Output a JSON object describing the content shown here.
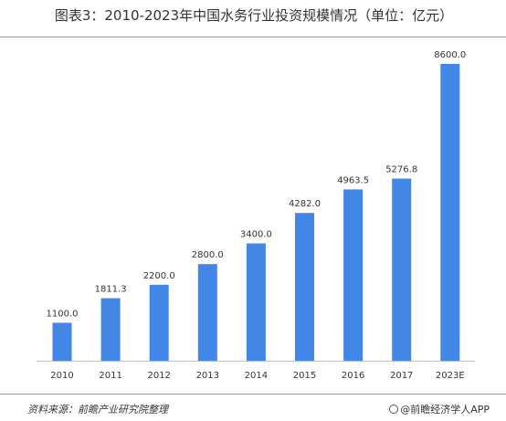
{
  "title": "图表3：2010-2023年中国水务行业投资规模情况（单位：亿元）",
  "source": "资料来源：前瞻产业研究院整理",
  "brand": "@前瞻经济学人APP",
  "colors": {
    "bar": "#4286e6",
    "axis": "#bfbfbf",
    "text": "#333333"
  },
  "chart_data": {
    "type": "bar",
    "title": "图表3：2010-2023年中国水务行业投资规模情况（单位：亿元）",
    "categories": [
      "2010",
      "2011",
      "2012",
      "2013",
      "2014",
      "2015",
      "2016",
      "2017",
      "2023E"
    ],
    "values": [
      1100.0,
      1811.3,
      2200.0,
      2800.0,
      3400.0,
      4282.0,
      4963.5,
      5276.8,
      8600.0
    ],
    "labels": [
      "1100.0",
      "1811.3",
      "2200.0",
      "2800.0",
      "3400.0",
      "4282.0",
      "4963.5",
      "5276.8",
      "8600.0"
    ],
    "unit": "亿元",
    "ylim": [
      0,
      8600
    ],
    "grid": false,
    "legend": "none"
  }
}
